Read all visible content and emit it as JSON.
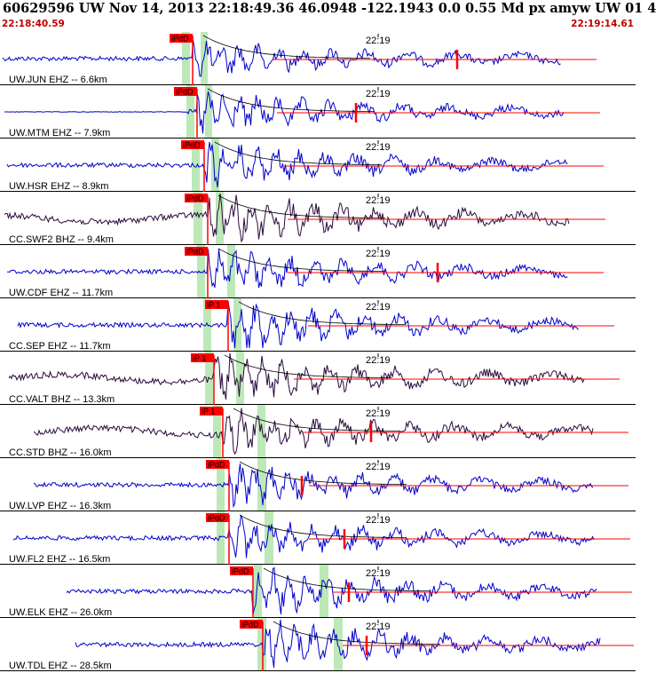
{
  "header": {
    "title": "60629596 UW Nov 14, 2013 22:18:49.36   46.0948 -122.1943  0.0 0.55 Md px amyw UW 01   4",
    "start_time": "22:18:40.59",
    "end_time": "22:19:14.61"
  },
  "colors": {
    "trace_blue": "#0000cc",
    "trace_dark": "#2b0a3d",
    "pick_red": "#ff0000",
    "window_green": "#bde8b8",
    "text": "#000000"
  },
  "chart_data": {
    "type": "seismogram",
    "time_range": [
      "22:18:40.59",
      "22:19:14.61"
    ],
    "time_tick_label": "22:19",
    "traces": [
      {
        "label": "UW.JUN EHZ -- 6.6km",
        "pick": "iPdD",
        "color": "blue"
      },
      {
        "label": "UW.MTM EHZ -- 7.9km",
        "pick": "iPdD",
        "color": "blue"
      },
      {
        "label": "UW.HSR EHZ -- 8.9km",
        "pick": "iPdD",
        "color": "blue"
      },
      {
        "label": "CC.SWF2 BHZ -- 9.4km",
        "pick": "iPdD",
        "color": "dark"
      },
      {
        "label": "UW.CDF EHZ -- 11.7km",
        "pick": "iPdD",
        "color": "blue"
      },
      {
        "label": "CC.SEP EHZ -- 11.7km",
        "pick": "iP 1",
        "color": "blue"
      },
      {
        "label": "CC.VALT BHZ -- 13.3km",
        "pick": "iP 1",
        "color": "dark"
      },
      {
        "label": "CC.STD BHZ -- 16.0km",
        "pick": "iP 1",
        "color": "dark"
      },
      {
        "label": "UW.LVP EHZ -- 16.3km",
        "pick": "iPdD",
        "color": "blue"
      },
      {
        "label": "UW.FL2 EHZ -- 16.5km",
        "pick": "iPdD",
        "color": "blue"
      },
      {
        "label": "UW.ELK EHZ -- 26.0km",
        "pick": "iPdD",
        "color": "blue"
      },
      {
        "label": "UW.TDL EHZ -- 28.5km",
        "pick": "iPdD",
        "color": "blue"
      }
    ]
  }
}
